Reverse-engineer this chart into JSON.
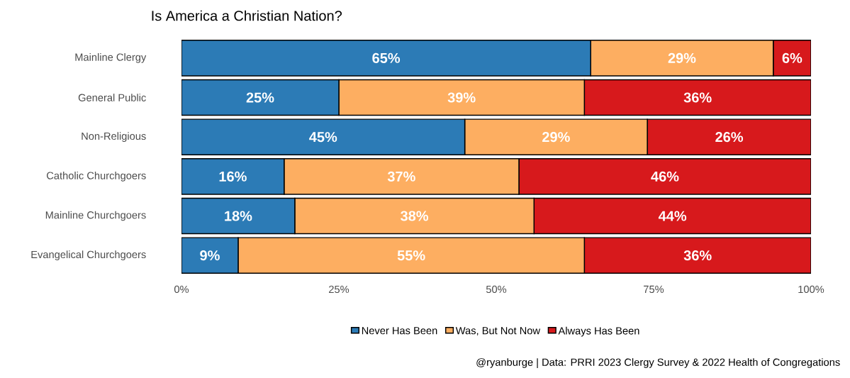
{
  "chart_data": {
    "type": "bar",
    "orientation": "horizontal",
    "stacked": true,
    "title": "Is America a Christian Nation?",
    "categories": [
      "Mainline Clergy",
      "General Public",
      "Non-Religious",
      "Catholic Churchgoers",
      "Mainline Churchgoers",
      "Evangelical Churchgoers"
    ],
    "series": [
      {
        "name": "Never Has Been",
        "color": "#2c7bb6",
        "values": [
          65,
          25,
          45,
          16.3,
          18,
          9
        ],
        "value_labels": [
          "65%",
          "25%",
          "45%",
          "16%",
          "18%",
          "9%"
        ]
      },
      {
        "name": "Was, But Not Now",
        "color": "#fdae61",
        "values": [
          29,
          39,
          29,
          37.3,
          38,
          55
        ],
        "value_labels": [
          "29%",
          "39%",
          "29%",
          "37%",
          "38%",
          "55%"
        ]
      },
      {
        "name": "Always Has Been",
        "color": "#d7191c",
        "values": [
          6,
          36,
          26,
          46.4,
          44,
          36
        ],
        "value_labels": [
          "6%",
          "36%",
          "26%",
          "46%",
          "44%",
          "36%"
        ]
      }
    ],
    "xlim": [
      0,
      100
    ],
    "xticks": [
      {
        "value": 0,
        "label": "0%"
      },
      {
        "value": 25,
        "label": "25%"
      },
      {
        "value": 50,
        "label": "50%"
      },
      {
        "value": 75,
        "label": "75%"
      },
      {
        "value": 100,
        "label": "100%"
      }
    ],
    "legend": "bottom",
    "annotations": [
      "@ryanburge | Data: PRRI 2023 Clergy Survey & 2022 Health of Congregations"
    ]
  }
}
